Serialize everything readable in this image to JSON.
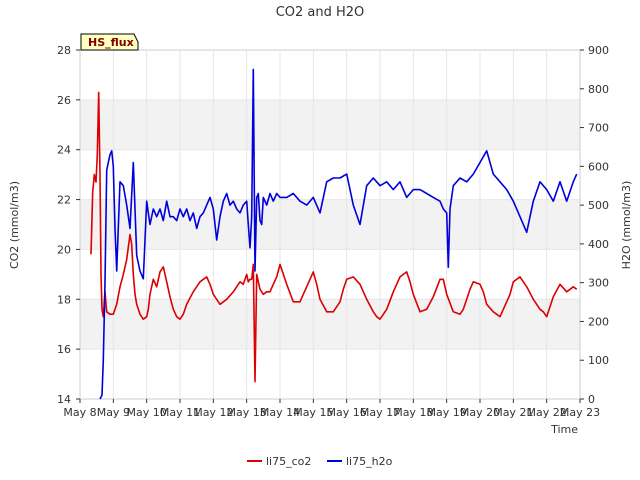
{
  "chart_data": {
    "type": "line",
    "title": "CO2 and H2O",
    "xlabel": "Time",
    "ylabel_left": "CO2 (mmol/m3)",
    "ylabel_right": "H2O (mmol/m3)",
    "badge": "HS_flux",
    "xlim": [
      8,
      23
    ],
    "ylim_left": [
      14,
      28
    ],
    "ylim_right": [
      0,
      900
    ],
    "x_ticks": [
      8,
      9,
      10,
      11,
      12,
      13,
      14,
      15,
      16,
      17,
      18,
      19,
      20,
      21,
      22,
      23
    ],
    "x_tick_labels": [
      "May 8",
      "May 9",
      "May 10",
      "May 11",
      "May 12",
      "May 13",
      "May 14",
      "May 15",
      "May 16",
      "May 17",
      "May 18",
      "May 19",
      "May 20",
      "May 21",
      "May 22",
      "May 23"
    ],
    "y_ticks_left": [
      14,
      16,
      18,
      20,
      22,
      24,
      26,
      28
    ],
    "y_tick_labels_left": [
      "14",
      "16",
      "18",
      "20",
      "22",
      "24",
      "26",
      "28"
    ],
    "y_ticks_right": [
      0,
      100,
      200,
      300,
      400,
      500,
      600,
      700,
      800,
      900
    ],
    "y_tick_labels_right": [
      "0",
      "100",
      "200",
      "300",
      "400",
      "500",
      "600",
      "700",
      "800",
      "900"
    ],
    "bands_left": [
      [
        16,
        18
      ],
      [
        20,
        22
      ],
      [
        24,
        26
      ]
    ],
    "legend": {
      "placement": "bottom-center",
      "entries": [
        "li75_co2",
        "li75_h2o"
      ]
    },
    "series": [
      {
        "name": "li75_co2",
        "axis": "left",
        "color": "#dd0000",
        "x": [
          8.33,
          8.38,
          8.43,
          8.48,
          8.52,
          8.56,
          8.6,
          8.63,
          8.66,
          8.7,
          8.75,
          8.8,
          8.9,
          9.0,
          9.1,
          9.2,
          9.3,
          9.4,
          9.5,
          9.55,
          9.6,
          9.65,
          9.7,
          9.8,
          9.9,
          10.0,
          10.05,
          10.1,
          10.2,
          10.3,
          10.4,
          10.5,
          10.6,
          10.7,
          10.8,
          10.9,
          11.0,
          11.1,
          11.2,
          11.4,
          11.6,
          11.8,
          11.9,
          12.0,
          12.2,
          12.4,
          12.6,
          12.7,
          12.8,
          12.9,
          13.0,
          13.05,
          13.1,
          13.15,
          13.2,
          13.25,
          13.3,
          13.4,
          13.5,
          13.6,
          13.7,
          13.8,
          13.9,
          14.0,
          14.2,
          14.4,
          14.6,
          14.7,
          14.9,
          15.0,
          15.1,
          15.2,
          15.4,
          15.6,
          15.8,
          15.9,
          16.0,
          16.2,
          16.4,
          16.6,
          16.8,
          16.9,
          17.0,
          17.2,
          17.4,
          17.6,
          17.8,
          17.9,
          18.0,
          18.2,
          18.4,
          18.6,
          18.8,
          18.9,
          19.0,
          19.2,
          19.4,
          19.5,
          19.6,
          19.7,
          19.8,
          20.0,
          20.1,
          20.2,
          20.4,
          20.6,
          20.8,
          20.9,
          21.0,
          21.2,
          21.4,
          21.6,
          21.8,
          21.9,
          22.0,
          22.2,
          22.4,
          22.6,
          22.8,
          22.9
        ],
        "y": [
          19.8,
          22.3,
          23.0,
          22.7,
          23.8,
          26.3,
          23.0,
          19.0,
          17.6,
          17.3,
          18.3,
          17.5,
          17.4,
          17.4,
          17.8,
          18.5,
          19.0,
          19.6,
          20.6,
          20.2,
          19.0,
          18.2,
          17.8,
          17.4,
          17.2,
          17.3,
          17.6,
          18.2,
          18.8,
          18.5,
          19.1,
          19.3,
          18.7,
          18.1,
          17.6,
          17.3,
          17.2,
          17.4,
          17.8,
          18.3,
          18.7,
          18.9,
          18.6,
          18.2,
          17.8,
          18.0,
          18.3,
          18.5,
          18.7,
          18.6,
          19.0,
          18.7,
          18.8,
          18.8,
          19.4,
          14.7,
          19.0,
          18.4,
          18.2,
          18.3,
          18.3,
          18.6,
          18.9,
          19.4,
          18.6,
          17.9,
          17.9,
          18.2,
          18.8,
          19.1,
          18.6,
          18.0,
          17.5,
          17.5,
          17.9,
          18.4,
          18.8,
          18.9,
          18.6,
          18.0,
          17.5,
          17.3,
          17.2,
          17.6,
          18.3,
          18.9,
          19.1,
          18.7,
          18.2,
          17.5,
          17.6,
          18.1,
          18.8,
          18.8,
          18.2,
          17.5,
          17.4,
          17.6,
          18.0,
          18.4,
          18.7,
          18.6,
          18.3,
          17.8,
          17.5,
          17.3,
          17.9,
          18.2,
          18.7,
          18.9,
          18.5,
          18.0,
          17.6,
          17.5,
          17.3,
          18.1,
          18.6,
          18.3,
          18.5,
          18.4
        ]
      },
      {
        "name": "li75_h2o",
        "axis": "right",
        "color": "#0000dd",
        "x": [
          8.6,
          8.66,
          8.7,
          8.75,
          8.8,
          8.85,
          8.9,
          8.95,
          9.0,
          9.05,
          9.1,
          9.2,
          9.3,
          9.4,
          9.5,
          9.6,
          9.7,
          9.8,
          9.9,
          10.0,
          10.05,
          10.1,
          10.2,
          10.3,
          10.4,
          10.5,
          10.6,
          10.7,
          10.8,
          10.9,
          11.0,
          11.1,
          11.2,
          11.3,
          11.4,
          11.5,
          11.6,
          11.7,
          11.8,
          11.9,
          12.0,
          12.1,
          12.2,
          12.3,
          12.4,
          12.5,
          12.6,
          12.7,
          12.8,
          12.9,
          13.0,
          13.05,
          13.1,
          13.15,
          13.2,
          13.25,
          13.3,
          13.35,
          13.4,
          13.45,
          13.5,
          13.6,
          13.7,
          13.8,
          13.9,
          14.0,
          14.2,
          14.4,
          14.6,
          14.8,
          15.0,
          15.2,
          15.4,
          15.6,
          15.8,
          16.0,
          16.2,
          16.4,
          16.6,
          16.8,
          17.0,
          17.2,
          17.4,
          17.6,
          17.8,
          18.0,
          18.2,
          18.4,
          18.6,
          18.8,
          18.9,
          19.0,
          19.05,
          19.1,
          19.2,
          19.3,
          19.4,
          19.6,
          19.8,
          20.0,
          20.2,
          20.4,
          20.6,
          20.8,
          21.0,
          21.2,
          21.4,
          21.6,
          21.8,
          22.0,
          22.2,
          22.4,
          22.6,
          22.8,
          22.9
        ],
        "y": [
          0,
          10,
          100,
          300,
          590,
          610,
          630,
          640,
          600,
          440,
          330,
          560,
          550,
          500,
          440,
          610,
          370,
          330,
          310,
          510,
          480,
          450,
          490,
          470,
          490,
          460,
          510,
          470,
          470,
          460,
          490,
          470,
          490,
          460,
          480,
          440,
          470,
          480,
          500,
          520,
          490,
          410,
          470,
          510,
          530,
          500,
          510,
          490,
          480,
          500,
          510,
          450,
          390,
          470,
          850,
          330,
          520,
          530,
          460,
          450,
          520,
          500,
          530,
          510,
          530,
          520,
          520,
          530,
          510,
          500,
          520,
          480,
          560,
          570,
          570,
          580,
          500,
          450,
          550,
          570,
          550,
          560,
          540,
          560,
          520,
          540,
          540,
          530,
          520,
          510,
          490,
          480,
          340,
          490,
          550,
          560,
          570,
          560,
          580,
          610,
          640,
          580,
          560,
          540,
          510,
          470,
          430,
          510,
          560,
          540,
          510,
          560,
          510,
          560,
          580
        ]
      }
    ]
  }
}
